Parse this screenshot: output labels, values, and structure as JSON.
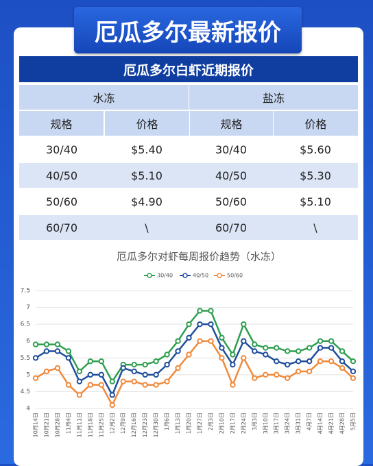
{
  "banner_title": "厄瓜多尔最新报价",
  "table": {
    "title": "厄瓜多尔白虾近期报价",
    "groups": [
      "水冻",
      "盐冻"
    ],
    "headers": [
      "规格",
      "价格",
      "规格",
      "价格"
    ],
    "rows": [
      [
        "30/40",
        "$5.40",
        "30/40",
        "$5.60"
      ],
      [
        "40/50",
        "$5.10",
        "40/50",
        "$5.30"
      ],
      [
        "50/60",
        "$4.90",
        "50/60",
        "$5.10"
      ],
      [
        "60/70",
        "\\",
        "60/70",
        "\\"
      ]
    ]
  },
  "chart_data": {
    "type": "line",
    "title": "厄瓜多尔对虾每周报价趋势（水冻）",
    "categories": [
      "10月14日",
      "10月21日",
      "10月28日",
      "11月4日",
      "11月11日",
      "11月18日",
      "11月25日",
      "12月2日",
      "12月9日",
      "12月16日",
      "12月23日",
      "12月30日",
      "1月6日",
      "1月13日",
      "1月20日",
      "1月27日",
      "2月3日",
      "2月10日",
      "2月17日",
      "2月24日",
      "3月3日",
      "3月10日",
      "3月17日",
      "3月24日",
      "3月31日",
      "4月7日",
      "4月14日",
      "4月21日",
      "4月28日",
      "5月5日"
    ],
    "series": [
      {
        "name": "30/40",
        "color": "#2e9e4f",
        "values": [
          5.9,
          5.9,
          5.9,
          5.7,
          5.1,
          5.4,
          5.4,
          4.8,
          5.3,
          5.3,
          5.3,
          5.4,
          5.6,
          6.0,
          6.5,
          6.9,
          6.9,
          6.1,
          5.6,
          6.5,
          5.9,
          5.8,
          5.8,
          5.7,
          5.7,
          5.8,
          6.0,
          6.0,
          5.7,
          5.4
        ]
      },
      {
        "name": "40/50",
        "color": "#1f4e9c",
        "values": [
          5.5,
          5.7,
          5.7,
          5.5,
          4.8,
          5.0,
          5.0,
          4.4,
          5.2,
          5.1,
          5.0,
          5.0,
          5.3,
          5.7,
          6.1,
          6.5,
          6.5,
          5.8,
          5.3,
          6.0,
          5.7,
          5.6,
          5.4,
          5.3,
          5.4,
          5.4,
          5.8,
          5.8,
          5.4,
          5.1
        ]
      },
      {
        "name": "50/60",
        "color": "#f08a3c",
        "values": [
          4.9,
          5.1,
          5.2,
          4.7,
          4.4,
          4.7,
          4.7,
          4.1,
          4.8,
          4.8,
          4.7,
          4.7,
          4.8,
          5.2,
          5.6,
          6.0,
          6.0,
          5.5,
          4.7,
          5.5,
          4.9,
          5.0,
          5.0,
          4.9,
          5.1,
          5.1,
          5.4,
          5.4,
          5.2,
          4.9
        ]
      }
    ],
    "ylim": [
      4,
      7.5
    ],
    "yticks": [
      4,
      4.5,
      5,
      5.5,
      6,
      6.5,
      7,
      7.5
    ],
    "grid": true,
    "legend": "top"
  }
}
